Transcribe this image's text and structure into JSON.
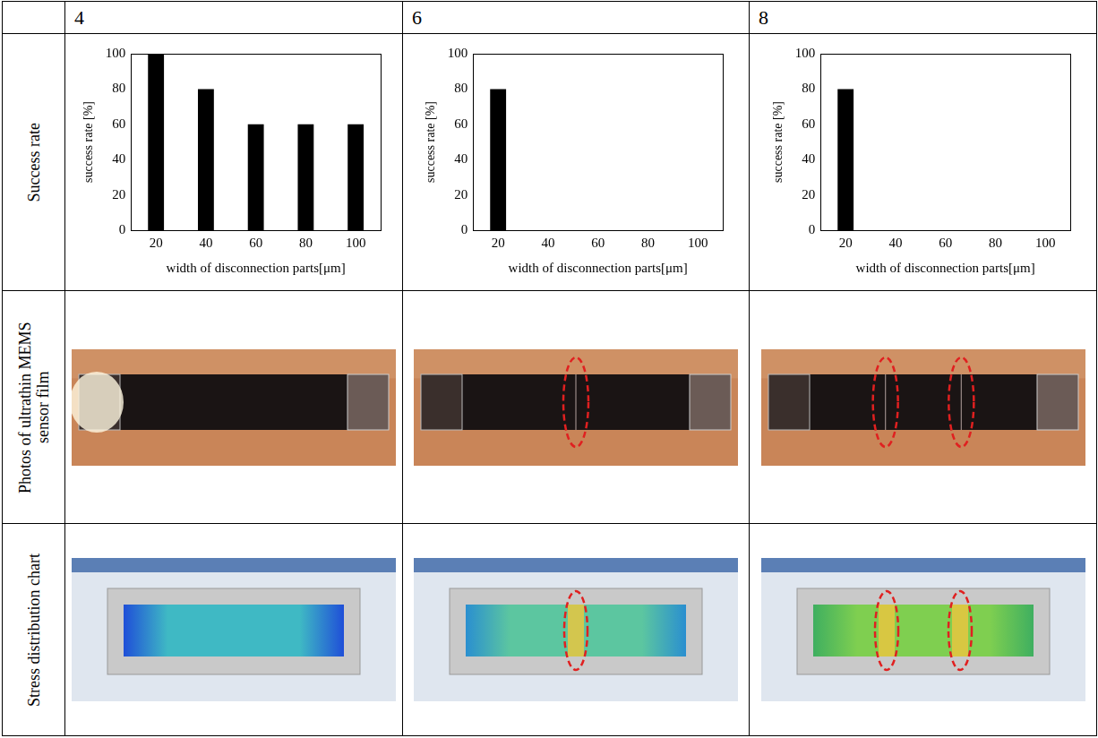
{
  "table": {
    "columns": [
      "4",
      "6",
      "8"
    ],
    "row_labels": [
      "Success rate",
      "Photos of ultrathin MEMS sensor film",
      "Stress distribution chart"
    ],
    "highlighted_regions": [
      0,
      1,
      2
    ]
  },
  "chart_data": [
    {
      "type": "bar",
      "categories": [
        "20",
        "40",
        "60",
        "80",
        "100"
      ],
      "values": [
        100,
        80,
        60,
        60,
        60
      ],
      "color": "#000000",
      "x_label": "width of disconnection parts[μm]",
      "y_label": "success rate [%]",
      "ylim": [
        0,
        100
      ],
      "yticks": [
        0,
        20,
        40,
        60,
        80,
        100
      ],
      "grid": false
    },
    {
      "type": "bar",
      "categories": [
        "20",
        "40",
        "60",
        "80",
        "100"
      ],
      "values": [
        80,
        0,
        0,
        0,
        0
      ],
      "color": "#000000",
      "x_label": "width of disconnection parts[μm]",
      "y_label": "success rate [%]",
      "ylim": [
        0,
        100
      ],
      "yticks": [
        0,
        20,
        40,
        60,
        80,
        100
      ],
      "grid": false
    },
    {
      "type": "bar",
      "categories": [
        "20",
        "40",
        "60",
        "80",
        "100"
      ],
      "values": [
        80,
        0,
        0,
        0,
        0
      ],
      "color": "#000000",
      "x_label": "width of disconnection parts[μm]",
      "y_label": "success rate [%]",
      "ylim": [
        0,
        100
      ],
      "yticks": [
        0,
        20,
        40,
        60,
        80,
        100
      ],
      "grid": false
    }
  ]
}
